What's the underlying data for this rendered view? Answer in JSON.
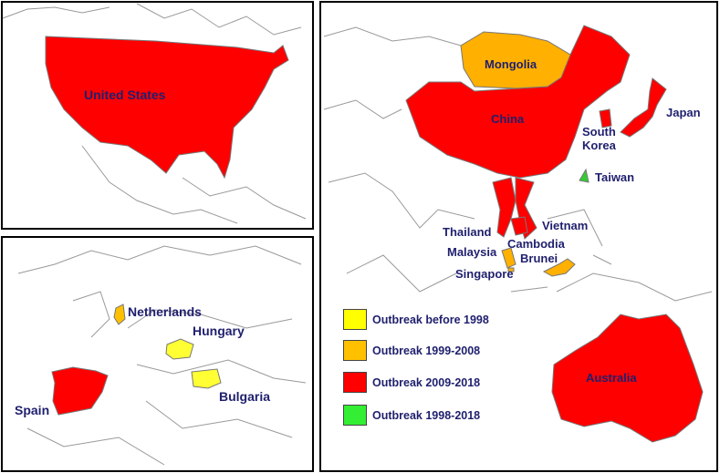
{
  "regions": [
    {
      "label": "United States",
      "color": "#ff0000"
    },
    {
      "label": "Netherlands",
      "color": "#ffc000"
    },
    {
      "label": "Hungary",
      "color": "#ffff33"
    },
    {
      "label": "Bulgaria",
      "color": "#ffff33"
    },
    {
      "label": "Spain",
      "color": "#ff0000"
    },
    {
      "label": "Mongolia",
      "color": "#ffb000"
    },
    {
      "label": "China",
      "color": "#ff0000"
    },
    {
      "label": "Japan",
      "color": "#ff0000"
    },
    {
      "label": "South Korea",
      "color": "#ff0000"
    },
    {
      "label": "Taiwan",
      "color": "#33cc33"
    },
    {
      "label": "Vietnam",
      "color": "#ff0000"
    },
    {
      "label": "Thailand",
      "color": "#ff0000"
    },
    {
      "label": "Cambodia",
      "color": "#ff0000"
    },
    {
      "label": "Malaysia",
      "color": "#ffb000"
    },
    {
      "label": "Brunei",
      "color": "#ffb000"
    },
    {
      "label": "Singapore",
      "color": "#ffb000"
    },
    {
      "label": "Australia",
      "color": "#ff0000"
    }
  ],
  "legend": [
    {
      "label": "Outbreak before 1998",
      "color": "#ffff00"
    },
    {
      "label": "Outbreak 1999-2008",
      "color": "#ffc000"
    },
    {
      "label": "Outbreak 2009-2018",
      "color": "#ff0000"
    },
    {
      "label": "Outbreak 1998-2018",
      "color": "#33ee33"
    }
  ]
}
